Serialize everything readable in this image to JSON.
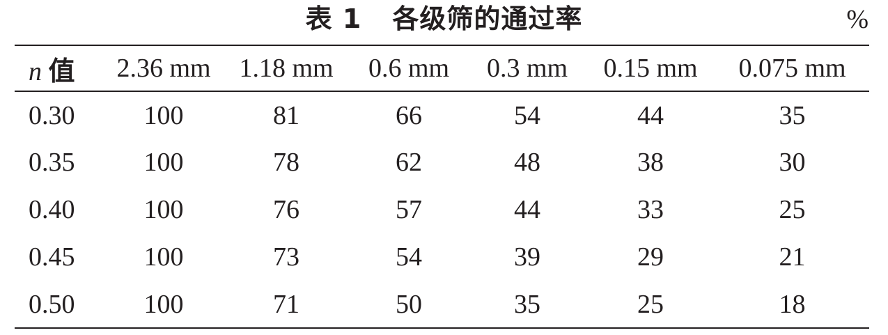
{
  "table": {
    "caption_number": "表 1",
    "caption_text": "各级筛的通过率",
    "unit": "%",
    "header_var": "n",
    "header_var_suffix": "值",
    "columns": [
      "2.36 mm",
      "1.18 mm",
      "0.6 mm",
      "0.3 mm",
      "0.15 mm",
      "0.075 mm"
    ],
    "rows": [
      {
        "n": "0.30",
        "values": [
          "100",
          "81",
          "66",
          "54",
          "44",
          "35"
        ]
      },
      {
        "n": "0.35",
        "values": [
          "100",
          "78",
          "62",
          "48",
          "38",
          "30"
        ]
      },
      {
        "n": "0.40",
        "values": [
          "100",
          "76",
          "57",
          "44",
          "33",
          "25"
        ]
      },
      {
        "n": "0.45",
        "values": [
          "100",
          "73",
          "54",
          "39",
          "29",
          "21"
        ]
      },
      {
        "n": "0.50",
        "values": [
          "100",
          "71",
          "50",
          "35",
          "25",
          "18"
        ]
      }
    ]
  },
  "colors": {
    "text": "#231f20",
    "rule": "#231f20",
    "background": "#ffffff"
  }
}
